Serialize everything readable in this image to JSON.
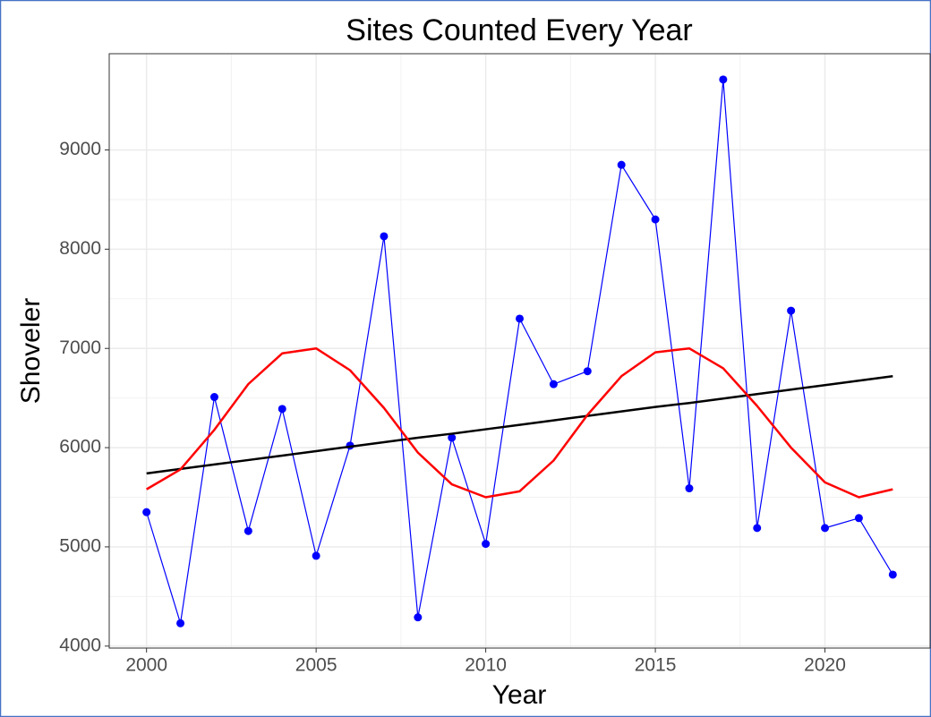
{
  "chart_data": {
    "type": "line",
    "title": "Sites Counted Every Year",
    "x_label": "Year",
    "y_label": "Shoveler",
    "x": [
      2000,
      2001,
      2002,
      2003,
      2004,
      2005,
      2006,
      2007,
      2008,
      2009,
      2010,
      2011,
      2012,
      2013,
      2014,
      2015,
      2016,
      2017,
      2018,
      2019,
      2020,
      2021,
      2022
    ],
    "series": [
      {
        "color": "#0000ff",
        "markers": true,
        "line_width": 1.2,
        "values": [
          5350,
          4230,
          6510,
          5160,
          6390,
          4910,
          6020,
          8130,
          4290,
          6100,
          5030,
          7300,
          6640,
          6770,
          8850,
          8300,
          5590,
          9710,
          5190,
          7380,
          5190,
          5290,
          4720
        ]
      },
      {
        "color": "#000000",
        "markers": false,
        "line_width": 2.5,
        "values": [
          5740,
          5785,
          5830,
          5875,
          5920,
          5965,
          6010,
          6055,
          6100,
          6140,
          6185,
          6230,
          6275,
          6320,
          6365,
          6410,
          6450,
          6495,
          6540,
          6585,
          6630,
          6675,
          6720
        ]
      },
      {
        "color": "#ff0000",
        "markers": false,
        "line_width": 2.5,
        "values": [
          5580,
          5780,
          6180,
          6640,
          6950,
          7000,
          6780,
          6400,
          5950,
          5630,
          5500,
          5560,
          5870,
          6330,
          6720,
          6960,
          7000,
          6800,
          6420,
          6000,
          5650,
          5500,
          5580
        ]
      }
    ],
    "xlim": [
      1998.9,
      2023.1
    ],
    "xticks": [
      2000,
      2005,
      2010,
      2015,
      2020
    ],
    "ylim": [
      3980,
      9970
    ],
    "yticks": [
      4000,
      5000,
      6000,
      7000,
      8000,
      9000
    ],
    "grid": true,
    "minor_grid": true
  }
}
